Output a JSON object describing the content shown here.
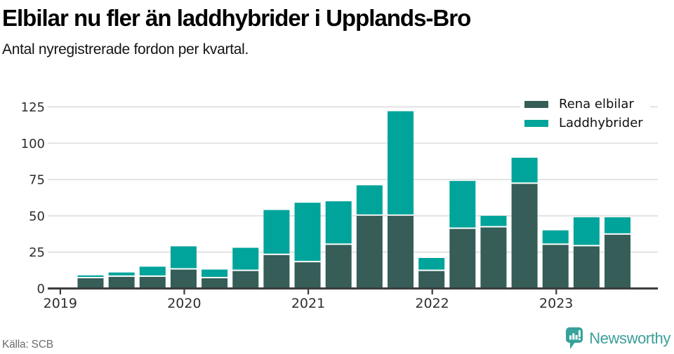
{
  "header": {
    "title": "Elbilar nu fler än laddhybrider i Upplands-Bro",
    "subtitle": "Antal nyregistrerade fordon per kvartal."
  },
  "chart_data": {
    "type": "bar",
    "stacked": true,
    "title": "Elbilar nu fler än laddhybrider i Upplands-Bro",
    "subtitle": "Antal nyregistrerade fordon per kvartal.",
    "categories": [
      "2019 Q2",
      "2019 Q3",
      "2019 Q4",
      "2020 Q1",
      "2020 Q2",
      "2020 Q3",
      "2020 Q4",
      "2021 Q1",
      "2021 Q2",
      "2021 Q3",
      "2021 Q4",
      "2022 Q1",
      "2022 Q2",
      "2022 Q3",
      "2022 Q4",
      "2023 Q1",
      "2023 Q2",
      "2023 Q3"
    ],
    "series": [
      {
        "name": "Rena elbilar",
        "color": "#365d58",
        "values": [
          7,
          8,
          8,
          13,
          7,
          12,
          23,
          18,
          30,
          50,
          50,
          12,
          41,
          42,
          72,
          30,
          29,
          37
        ]
      },
      {
        "name": "Laddhybrider",
        "color": "#00a49a",
        "values": [
          2,
          3,
          7,
          16,
          6,
          16,
          31,
          41,
          30,
          21,
          72,
          9,
          33,
          8,
          18,
          10,
          20,
          12
        ]
      }
    ],
    "xlabel": "",
    "ylabel": "",
    "ylim": [
      0,
      125
    ],
    "yticks": [
      0,
      25,
      50,
      75,
      100,
      125
    ],
    "xticks": [
      "2019",
      "2020",
      "2021",
      "2022",
      "2023"
    ],
    "grid": true,
    "legend_position": "top-right"
  },
  "footer": {
    "source": "Källa: SCB",
    "brand": "Newsworthy"
  },
  "colors": {
    "grid": "#e2e2e2",
    "axis": "#3d3d3d",
    "tick_label": "#2e2e2e",
    "brand_teal": "#35a29b"
  }
}
